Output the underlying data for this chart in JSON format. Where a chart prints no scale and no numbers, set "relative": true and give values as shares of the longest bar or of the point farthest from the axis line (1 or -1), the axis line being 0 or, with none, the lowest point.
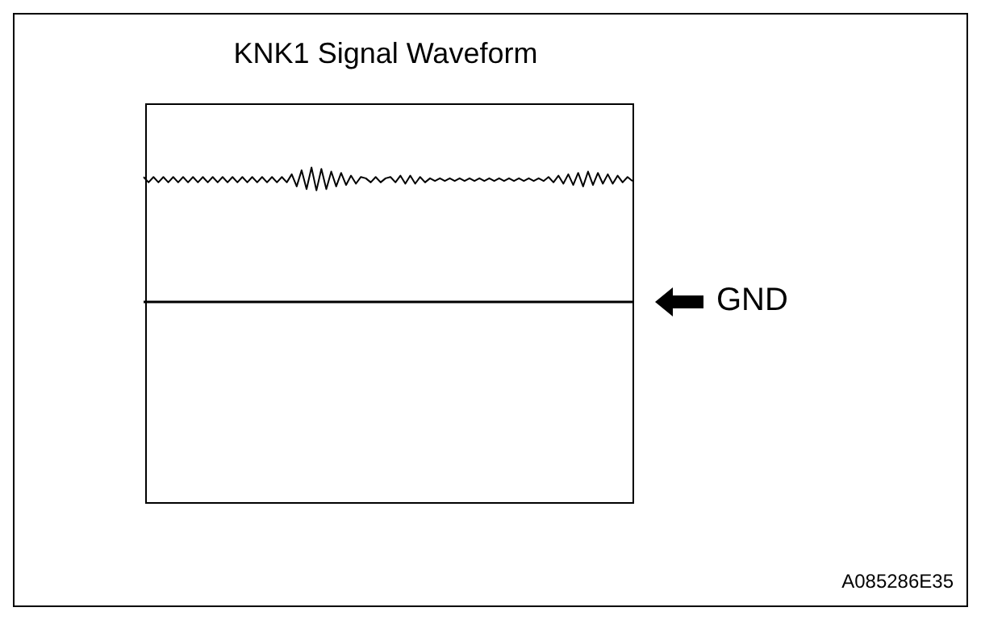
{
  "chart_data": {
    "type": "line",
    "title": "KNK1 Signal Waveform",
    "relative": true,
    "marker": "none",
    "line_style": "solid",
    "categories": [
      null,
      null,
      null,
      null,
      null,
      null,
      null,
      null,
      null,
      null,
      null,
      null,
      null,
      null,
      null,
      null,
      null,
      null,
      null,
      null,
      null,
      null,
      null,
      null,
      null,
      null,
      null,
      null,
      null,
      null,
      null,
      null,
      null,
      null,
      null,
      null,
      null,
      null,
      null,
      null,
      null,
      null,
      null,
      null,
      null,
      null,
      null,
      null,
      null,
      null,
      null,
      null,
      null,
      null,
      null,
      null,
      null,
      null,
      null,
      null,
      null,
      null,
      null,
      null,
      null,
      null,
      null,
      null,
      null,
      null,
      null,
      null,
      null,
      null,
      null,
      null,
      null,
      null,
      null,
      null,
      null,
      null,
      null,
      null,
      null,
      null,
      null,
      null,
      null,
      null,
      null,
      null,
      null,
      null,
      null,
      null,
      null,
      null,
      null,
      null
    ],
    "series": [
      {
        "color": "#000000",
        "values": [
          0.93,
          0.89,
          0.93,
          0.89,
          0.93,
          0.89,
          0.93,
          0.89,
          0.93,
          0.89,
          0.93,
          0.89,
          0.93,
          0.89,
          0.93,
          0.89,
          0.93,
          0.89,
          0.93,
          0.89,
          0.93,
          0.89,
          0.93,
          0.89,
          0.93,
          0.89,
          0.93,
          0.89,
          0.93,
          0.89,
          0.95,
          0.86,
          0.98,
          0.84,
          1,
          0.83,
          0.99,
          0.84,
          0.97,
          0.86,
          0.96,
          0.87,
          0.94,
          0.88,
          0.93,
          0.92,
          0.89,
          0.93,
          0.89,
          0.92,
          0.93,
          0.89,
          0.94,
          0.88,
          0.94,
          0.88,
          0.93,
          0.89,
          0.92,
          0.9,
          0.92,
          0.9,
          0.92,
          0.9,
          0.92,
          0.9,
          0.92,
          0.9,
          0.92,
          0.9,
          0.92,
          0.9,
          0.92,
          0.9,
          0.92,
          0.9,
          0.92,
          0.9,
          0.92,
          0.9,
          0.92,
          0.9,
          0.93,
          0.89,
          0.94,
          0.88,
          0.95,
          0.87,
          0.96,
          0.86,
          0.97,
          0.87,
          0.96,
          0.88,
          0.95,
          0.88,
          0.94,
          0.89,
          0.93,
          0.9
        ]
      }
    ],
    "ref_lines": [
      {
        "axis": "y",
        "value": 0,
        "label": "GND",
        "color": "#000000"
      }
    ],
    "annotations": [
      "A085286E35"
    ]
  }
}
